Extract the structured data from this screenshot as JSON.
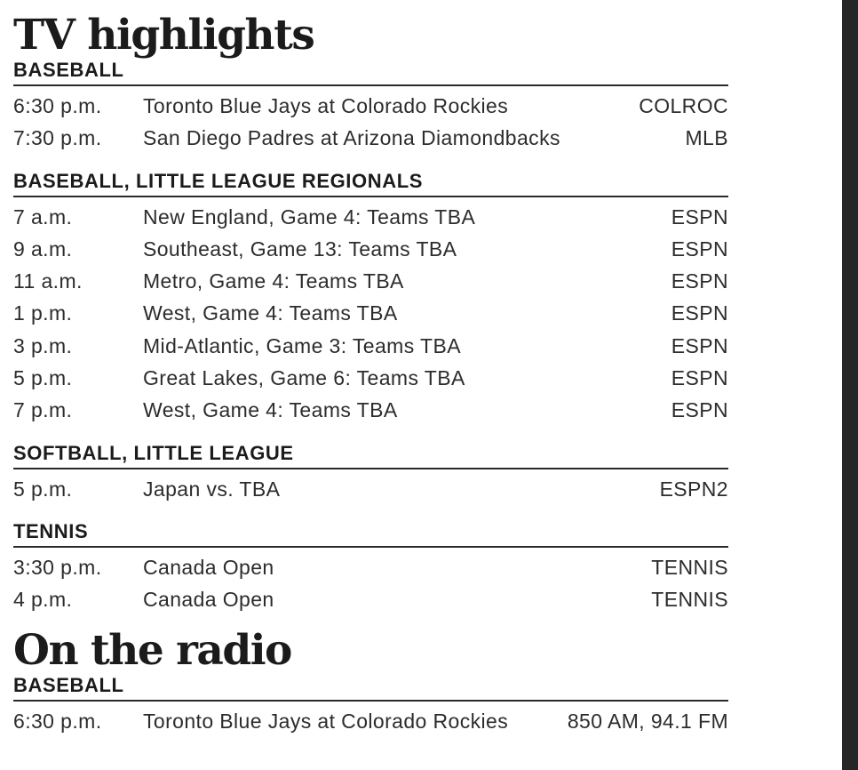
{
  "tv": {
    "title": "TV highlights",
    "sections": [
      {
        "heading": "BASEBALL",
        "rows": [
          {
            "time": "6:30 p.m.",
            "event": "Toronto Blue Jays at Colorado Rockies",
            "channel": "COLROC"
          },
          {
            "time": "7:30 p.m.",
            "event": "San Diego Padres at Arizona Diamondbacks",
            "channel": "MLB"
          }
        ]
      },
      {
        "heading": "BASEBALL, LITTLE LEAGUE REGIONALS",
        "rows": [
          {
            "time": "7 a.m.",
            "event": "New England, Game 4: Teams TBA",
            "channel": "ESPN"
          },
          {
            "time": "9 a.m.",
            "event": "Southeast, Game 13: Teams TBA",
            "channel": "ESPN"
          },
          {
            "time": "11 a.m.",
            "event": "Metro, Game 4: Teams TBA",
            "channel": "ESPN"
          },
          {
            "time": "1 p.m.",
            "event": "West, Game 4: Teams TBA",
            "channel": "ESPN"
          },
          {
            "time": "3 p.m.",
            "event": "Mid-Atlantic, Game 3: Teams TBA",
            "channel": "ESPN"
          },
          {
            "time": "5 p.m.",
            "event": "Great Lakes, Game 6: Teams TBA",
            "channel": "ESPN"
          },
          {
            "time": "7 p.m.",
            "event": "West, Game 4: Teams TBA",
            "channel": "ESPN"
          }
        ]
      },
      {
        "heading": "SOFTBALL, LITTLE LEAGUE",
        "rows": [
          {
            "time": "5 p.m.",
            "event": "Japan vs. TBA",
            "channel": "ESPN2"
          }
        ]
      },
      {
        "heading": "TENNIS",
        "rows": [
          {
            "time": "3:30 p.m.",
            "event": "Canada Open",
            "channel": "TENNIS"
          },
          {
            "time": "4 p.m.",
            "event": "Canada Open",
            "channel": "TENNIS"
          }
        ]
      }
    ]
  },
  "radio": {
    "title": "On the radio",
    "sections": [
      {
        "heading": "BASEBALL",
        "rows": [
          {
            "time": "6:30 p.m.",
            "event": "Toronto Blue Jays at Colorado Rockies",
            "channel": "850 AM, 94.1 FM"
          }
        ]
      }
    ]
  }
}
